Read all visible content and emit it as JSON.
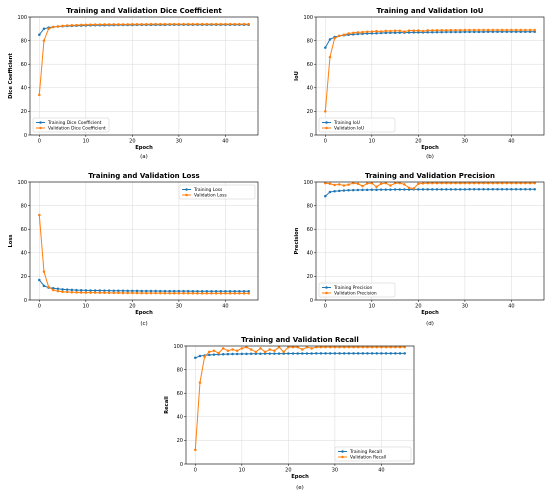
{
  "colors": {
    "training": "#1f77b4",
    "validation": "#ff7f0e"
  },
  "chart_data": [
    {
      "type": "line",
      "title": "Training and Validation Dice Coefficient",
      "xlabel": "Epoch",
      "ylabel": "Dice Coefficient",
      "caption": "(a)",
      "xlim": [
        -2,
        47
      ],
      "ylim": [
        0,
        100
      ],
      "xticks": [
        0,
        10,
        20,
        30,
        40
      ],
      "yticks": [
        0,
        20,
        40,
        60,
        80,
        100
      ],
      "grid": true,
      "legend": "bottom-left",
      "series": [
        {
          "name": "Training Dice Coefficient",
          "values": [
            85,
            90,
            91,
            91.5,
            92,
            92.2,
            92.4,
            92.5,
            92.6,
            92.7,
            92.8,
            92.9,
            93,
            93,
            93,
            93.1,
            93.1,
            93.2,
            93.2,
            93.2,
            93.2,
            93.3,
            93.3,
            93.3,
            93.3,
            93.3,
            93.3,
            93.3,
            93.4,
            93.4,
            93.4,
            93.4,
            93.4,
            93.4,
            93.4,
            93.4,
            93.4,
            93.4,
            93.4,
            93.4,
            93.4,
            93.4,
            93.4,
            93.4,
            93.4,
            93.4
          ]
        },
        {
          "name": "Validation Dice Coefficient",
          "values": [
            34,
            80,
            90,
            91.5,
            92,
            92.5,
            92.8,
            93,
            93.1,
            93.3,
            93.4,
            93.5,
            93.6,
            93.6,
            93.7,
            93.7,
            93.7,
            93.8,
            93.8,
            93.8,
            93.9,
            93.9,
            93.9,
            93.9,
            94,
            94,
            94,
            94,
            94,
            94,
            94,
            94,
            94,
            94,
            94,
            94,
            94,
            94,
            94,
            94,
            94,
            94,
            94,
            94,
            94,
            94
          ]
        }
      ]
    },
    {
      "type": "line",
      "title": "Training and Validation IoU",
      "xlabel": "Epoch",
      "ylabel": "IoU",
      "caption": "(b)",
      "xlim": [
        -2,
        47
      ],
      "ylim": [
        0,
        100
      ],
      "xticks": [
        0,
        10,
        20,
        30,
        40
      ],
      "yticks": [
        0,
        20,
        40,
        60,
        80,
        100
      ],
      "grid": true,
      "legend": "bottom-left",
      "series": [
        {
          "name": "Training IoU",
          "values": [
            74,
            81,
            83,
            84,
            84.5,
            85,
            85.3,
            85.6,
            85.8,
            86,
            86.1,
            86.2,
            86.4,
            86.5,
            86.6,
            86.7,
            86.8,
            86.8,
            86.9,
            87,
            87,
            87,
            87.1,
            87.1,
            87.2,
            87.2,
            87.3,
            87.3,
            87.3,
            87.3,
            87.4,
            87.4,
            87.4,
            87.4,
            87.4,
            87.5,
            87.5,
            87.5,
            87.5,
            87.5,
            87.5,
            87.5,
            87.5,
            87.5,
            87.5,
            87.5
          ]
        },
        {
          "name": "Validation IoU",
          "values": [
            20,
            66,
            82,
            84,
            85,
            86,
            86.5,
            87,
            87.2,
            87.5,
            87.6,
            88,
            87.7,
            88.2,
            88,
            88.3,
            88.4,
            87.6,
            88.5,
            88.5,
            88.6,
            88,
            88.7,
            88.7,
            88.8,
            88.8,
            88.8,
            88.9,
            88.9,
            88.9,
            89,
            89,
            89,
            89,
            89,
            89,
            89,
            89,
            89,
            89,
            89,
            89,
            89,
            89,
            89,
            89
          ]
        }
      ]
    },
    {
      "type": "line",
      "title": "Training and Validation Loss",
      "xlabel": "Epoch",
      "ylabel": "Loss",
      "caption": "(c)",
      "xlim": [
        -2,
        47
      ],
      "ylim": [
        0,
        100
      ],
      "xticks": [
        0,
        10,
        20,
        30,
        40
      ],
      "yticks": [
        0,
        20,
        40,
        60,
        80,
        100
      ],
      "grid": true,
      "legend": "top-right",
      "series": [
        {
          "name": "Training Loss",
          "values": [
            17,
            12,
            10.5,
            10,
            9.5,
            9,
            8.8,
            8.6,
            8.4,
            8.3,
            8.2,
            8.1,
            8,
            8,
            7.9,
            7.9,
            7.8,
            7.8,
            7.8,
            7.7,
            7.7,
            7.7,
            7.6,
            7.6,
            7.6,
            7.6,
            7.5,
            7.5,
            7.5,
            7.5,
            7.5,
            7.5,
            7.5,
            7.4,
            7.4,
            7.4,
            7.4,
            7.4,
            7.4,
            7.4,
            7.4,
            7.4,
            7.4,
            7.4,
            7.4,
            7.4
          ]
        },
        {
          "name": "Validation Loss",
          "values": [
            72,
            24,
            11,
            8.5,
            7.5,
            7,
            6.8,
            6.6,
            6.5,
            6.4,
            6.3,
            6.2,
            6.2,
            6.1,
            6.1,
            6,
            6,
            6,
            5.9,
            5.9,
            5.9,
            5.9,
            5.8,
            5.8,
            5.8,
            5.8,
            5.8,
            5.7,
            5.7,
            5.7,
            5.7,
            5.7,
            5.7,
            5.7,
            5.6,
            5.6,
            5.6,
            5.6,
            5.6,
            5.6,
            5.6,
            5.6,
            5.6,
            5.6,
            5.6,
            5.6
          ]
        }
      ]
    },
    {
      "type": "line",
      "title": "Training and Validation Precision",
      "xlabel": "Epoch",
      "ylabel": "Precision",
      "caption": "(d)",
      "xlim": [
        -2,
        47
      ],
      "ylim": [
        0,
        100
      ],
      "xticks": [
        0,
        10,
        20,
        30,
        40
      ],
      "yticks": [
        0,
        20,
        40,
        60,
        80,
        100
      ],
      "grid": true,
      "legend": "bottom-left",
      "series": [
        {
          "name": "Training Precision",
          "values": [
            88,
            91.5,
            92.2,
            92.5,
            92.8,
            93,
            93.1,
            93.2,
            93.3,
            93.3,
            93.4,
            93.4,
            93.5,
            93.5,
            93.5,
            93.6,
            93.6,
            93.6,
            93.6,
            93.7,
            93.7,
            93.7,
            93.7,
            93.7,
            93.8,
            93.8,
            93.8,
            93.8,
            93.8,
            93.8,
            93.8,
            93.9,
            93.9,
            93.9,
            93.9,
            93.9,
            93.9,
            93.9,
            93.9,
            93.9,
            93.9,
            93.9,
            93.9,
            93.9,
            93.9,
            93.9
          ]
        },
        {
          "name": "Validation Precision",
          "values": [
            99,
            98.5,
            97.5,
            98,
            97,
            97.8,
            99,
            98.5,
            96.5,
            98.7,
            99,
            96,
            98.5,
            99,
            97,
            99,
            99,
            98,
            95,
            94.5,
            98.5,
            98.8,
            99,
            99,
            99,
            99,
            99,
            99,
            99,
            99,
            99,
            99,
            99,
            99,
            99,
            99,
            99,
            99,
            99,
            99,
            99,
            99,
            99,
            99,
            99,
            99
          ]
        }
      ]
    },
    {
      "type": "line",
      "title": "Training and Validation Recall",
      "xlabel": "Epoch",
      "ylabel": "Recall",
      "caption": "(e)",
      "xlim": [
        -2,
        47
      ],
      "ylim": [
        0,
        100
      ],
      "xticks": [
        0,
        10,
        20,
        30,
        40
      ],
      "yticks": [
        0,
        20,
        40,
        60,
        80,
        100
      ],
      "grid": true,
      "legend": "bottom-right",
      "series": [
        {
          "name": "Training Recall",
          "values": [
            90,
            91.5,
            92,
            92.5,
            92.7,
            92.9,
            93,
            93.1,
            93.2,
            93.2,
            93.3,
            93.3,
            93.4,
            93.4,
            93.4,
            93.5,
            93.5,
            93.5,
            93.5,
            93.5,
            93.6,
            93.6,
            93.6,
            93.6,
            93.6,
            93.6,
            93.7,
            93.7,
            93.7,
            93.7,
            93.7,
            93.7,
            93.7,
            93.7,
            93.7,
            93.7,
            93.7,
            93.7,
            93.7,
            93.7,
            93.7,
            93.7,
            93.7,
            93.7,
            93.7,
            93.7
          ]
        },
        {
          "name": "Validation Recall",
          "values": [
            12,
            69,
            91,
            95,
            96,
            94,
            98,
            96,
            97,
            96,
            98,
            99,
            97,
            95,
            98,
            95,
            97,
            96,
            99,
            95,
            99,
            99,
            99,
            97,
            99,
            98,
            99,
            99,
            99,
            99,
            99,
            99,
            99,
            99,
            99,
            99,
            99,
            99,
            99,
            99,
            99,
            99,
            99,
            99,
            99,
            99
          ]
        }
      ]
    }
  ]
}
